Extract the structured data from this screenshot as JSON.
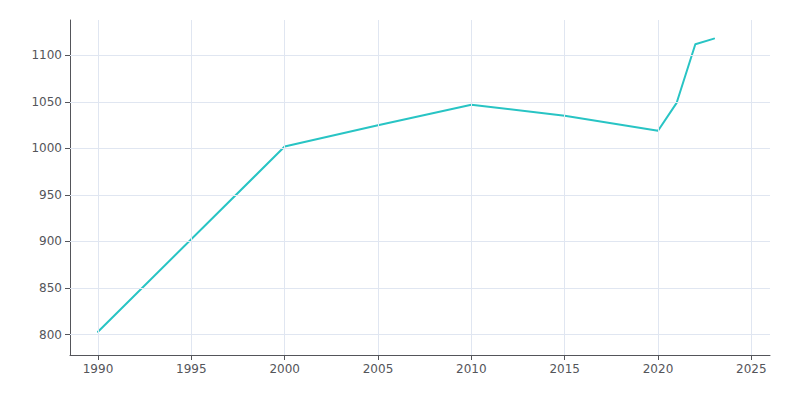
{
  "chart_data": {
    "type": "line",
    "x": [
      1990,
      2000,
      2005,
      2010,
      2015,
      2020,
      2021,
      2022,
      2023
    ],
    "values": [
      803,
      1002,
      1025,
      1047,
      1035,
      1019,
      1049,
      1112,
      1118
    ],
    "color": "#28c4c4",
    "xlim": [
      1988.5,
      2026
    ],
    "ylim": [
      778,
      1138
    ],
    "xticks": [
      1990,
      1995,
      2000,
      2005,
      2010,
      2015,
      2020,
      2025
    ],
    "yticks": [
      800,
      850,
      900,
      950,
      1000,
      1050,
      1100
    ],
    "grid": true
  }
}
